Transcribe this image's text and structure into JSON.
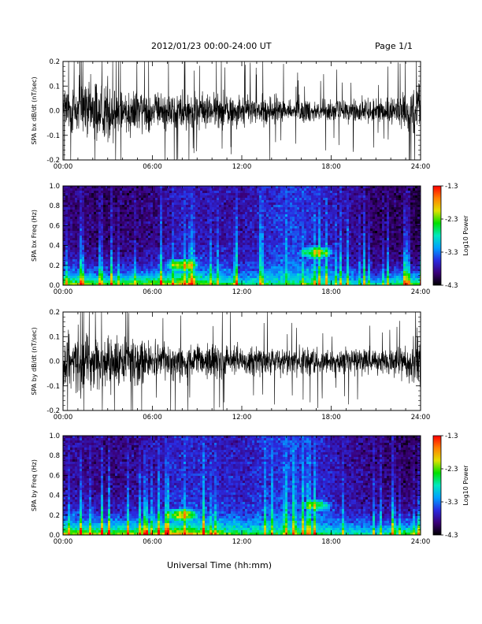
{
  "header": {
    "title": "2012/01/23  00:00-24:00 UT",
    "page": "Page 1/1"
  },
  "xaxis": {
    "label": "Universal Time (hh:mm)",
    "range": [
      0,
      24
    ],
    "ticks": [
      "00:00",
      "06:00",
      "12:00",
      "18:00",
      "24:00"
    ]
  },
  "colorbar": {
    "label": "Log10 Power",
    "ticks": [
      "-1.3",
      "-2.3",
      "-3.3",
      "-4.3"
    ],
    "range": [
      -4.3,
      -1.3
    ],
    "colors": [
      "#000000",
      "#3a0078",
      "#2a2ae0",
      "#00a0ff",
      "#00e8c0",
      "#00e000",
      "#e0e000",
      "#ff8000",
      "#ff0000"
    ]
  },
  "chart_data": [
    {
      "type": "line",
      "ylabel": "SPA bx dB/dt (nT/sec)",
      "ylim": [
        -0.2,
        0.2
      ],
      "yticks": [
        "0.2",
        "0.1",
        "0.0",
        "-0.1",
        "-0.2"
      ],
      "x": [
        0,
        1,
        2,
        3,
        4,
        5,
        6,
        7,
        8,
        9,
        10,
        11,
        12,
        13,
        14,
        15,
        16,
        17,
        18,
        19,
        20,
        21,
        22,
        23,
        24
      ],
      "amplitude": [
        0.2,
        0.2,
        0.2,
        0.2,
        0.15,
        0.16,
        0.12,
        0.12,
        0.13,
        0.12,
        0.11,
        0.11,
        0.1,
        0.09,
        0.1,
        0.08,
        0.08,
        0.07,
        0.07,
        0.08,
        0.08,
        0.07,
        0.08,
        0.12,
        0.2
      ],
      "color": "#000000"
    },
    {
      "type": "heatmap",
      "ylabel": "SPA bx Freq (Hz)",
      "ylim": [
        0.0,
        1.0
      ],
      "yticks": [
        "1.0",
        "0.8",
        "0.6",
        "0.4",
        "0.2",
        "0.0"
      ],
      "x": [
        0,
        3,
        6,
        8,
        12,
        15,
        17,
        19,
        21,
        23,
        24
      ],
      "low_freq_power": [
        -2.0,
        -2.2,
        -2.1,
        -1.8,
        -2.6,
        -2.5,
        -2.4,
        -2.7,
        -2.8,
        -2.3,
        -2.2
      ],
      "high_freq_power": [
        -3.9,
        -4.0,
        -3.9,
        -3.7,
        -3.8,
        -3.5,
        -3.6,
        -3.8,
        -4.0,
        -4.0,
        -4.1
      ],
      "features": [
        {
          "x": 17.0,
          "freq": 0.33,
          "power": -2.3
        },
        {
          "x": 8.0,
          "freq": 0.2,
          "power": -2.2
        }
      ]
    },
    {
      "type": "line",
      "ylabel": "SPA by dB/dt (nT/sec)",
      "ylim": [
        -0.2,
        0.2
      ],
      "yticks": [
        "0.2",
        "0.1",
        "0.0",
        "-0.1",
        "-0.2"
      ],
      "x": [
        0,
        1,
        2,
        3,
        4,
        5,
        6,
        7,
        8,
        9,
        10,
        11,
        12,
        13,
        14,
        15,
        16,
        17,
        18,
        19,
        20,
        21,
        22,
        23,
        24
      ],
      "amplitude": [
        0.2,
        0.2,
        0.2,
        0.18,
        0.16,
        0.15,
        0.12,
        0.12,
        0.12,
        0.11,
        0.11,
        0.1,
        0.1,
        0.1,
        0.1,
        0.09,
        0.09,
        0.08,
        0.08,
        0.08,
        0.08,
        0.08,
        0.09,
        0.12,
        0.2
      ],
      "color": "#000000"
    },
    {
      "type": "heatmap",
      "ylabel": "SPA by Freq (Hz)",
      "ylim": [
        0.0,
        1.0
      ],
      "yticks": [
        "1.0",
        "0.8",
        "0.6",
        "0.4",
        "0.2",
        "0.0"
      ],
      "x": [
        0,
        3,
        6,
        8,
        12,
        15,
        17,
        19,
        21,
        23,
        24
      ],
      "low_freq_power": [
        -1.9,
        -2.1,
        -2.0,
        -1.7,
        -2.4,
        -2.4,
        -2.4,
        -2.6,
        -2.7,
        -2.3,
        -2.1
      ],
      "high_freq_power": [
        -3.8,
        -3.9,
        -3.8,
        -3.6,
        -3.7,
        -3.5,
        -3.6,
        -3.8,
        -3.9,
        -4.0,
        -4.0
      ],
      "features": [
        {
          "x": 17.0,
          "freq": 0.3,
          "power": -2.5
        },
        {
          "x": 8.0,
          "freq": 0.2,
          "power": -2.1
        }
      ]
    }
  ]
}
